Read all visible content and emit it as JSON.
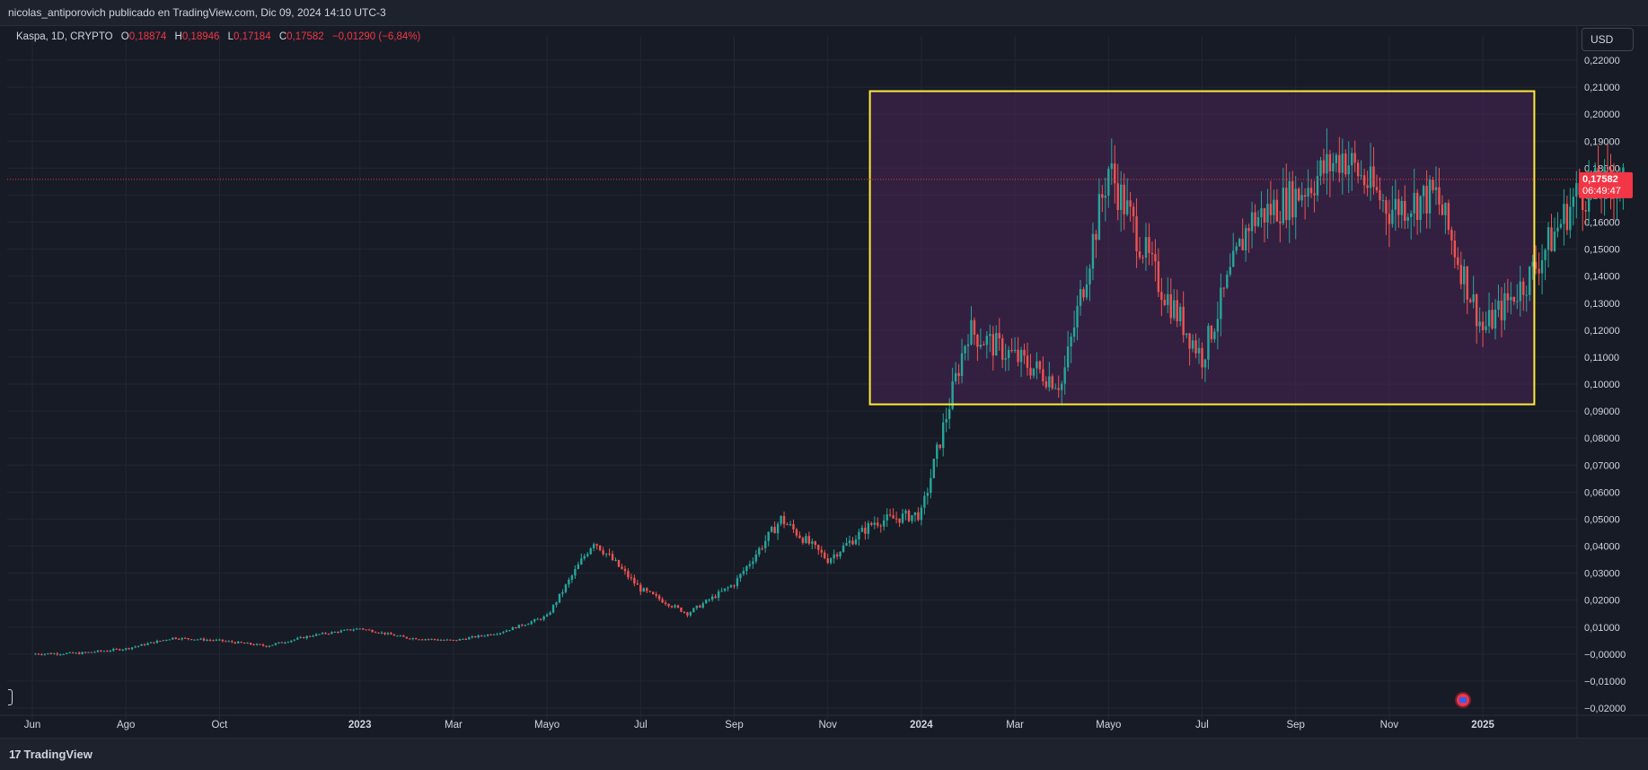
{
  "header": {
    "published": "nicolas_antiporovich publicado en TradingView.com, Dic 09, 2024 14:10 UTC-3"
  },
  "legend": {
    "symbol": "Kaspa, 1D, CRYPTO",
    "open_label": "O",
    "open": "0,18874",
    "high_label": "H",
    "high": "0,18946",
    "low_label": "L",
    "low": "0,17184",
    "close_label": "C",
    "close": "0,17582",
    "change": "−0,01290 (−6,84%)"
  },
  "currency_button": "USD",
  "price_badge": {
    "price": "0,17582",
    "countdown": "06:49:47"
  },
  "footer": {
    "brand": "TradingView",
    "brand_mark": "17"
  },
  "colors": {
    "background": "#171b26",
    "up": "#26a69a",
    "down": "#ef5350",
    "box_border": "#ffeb3b",
    "box_fill": "#4a2456",
    "last_price": "#f23645"
  },
  "chart_data": {
    "type": "candlestick",
    "symbol": "Kaspa",
    "interval": "1D",
    "x_tick_labels": [
      "Jun",
      "Ago",
      "Oct",
      "2023",
      "Mar",
      "Mayo",
      "Jul",
      "Sep",
      "Nov",
      "2024",
      "Mar",
      "Mayo",
      "Jul",
      "Sep",
      "Nov",
      "2025"
    ],
    "x_tick_index": [
      0,
      2,
      4,
      7,
      9,
      11,
      13,
      15,
      17,
      19,
      21,
      23,
      25,
      27,
      29,
      31
    ],
    "y_tick_labels": [
      "0,22000",
      "0,21000",
      "0,20000",
      "0,19000",
      "0,18000",
      "0,17000",
      "0,16000",
      "0,15000",
      "0,14000",
      "0,13000",
      "0,12000",
      "0,11000",
      "0,10000",
      "0,09000",
      "0,08000",
      "0,07000",
      "0,06000",
      "0,05000",
      "0,04000",
      "0,03000",
      "0,02000",
      "0,01000",
      "−0,00000",
      "−0,01000",
      "−0,02000"
    ],
    "ylim": [
      -0.02,
      0.22
    ],
    "grid": true,
    "monthly_close": [
      0.0001,
      0.0003,
      0.002,
      0.006,
      0.005,
      0.003,
      0.007,
      0.0095,
      0.006,
      0.005,
      0.008,
      0.014,
      0.042,
      0.024,
      0.015,
      0.026,
      0.05,
      0.035,
      0.049,
      0.052,
      0.12,
      0.11,
      0.1,
      0.18,
      0.14,
      0.11,
      0.16,
      0.17,
      0.185,
      0.165,
      0.17,
      0.12,
      0.14,
      0.17,
      0.17582
    ],
    "monthly_open_index": 0,
    "range_box": {
      "price_top": 0.2085,
      "price_bottom": 0.0925,
      "start_index": 17.9,
      "end_index": 32.1
    },
    "last_price": 0.17582
  }
}
